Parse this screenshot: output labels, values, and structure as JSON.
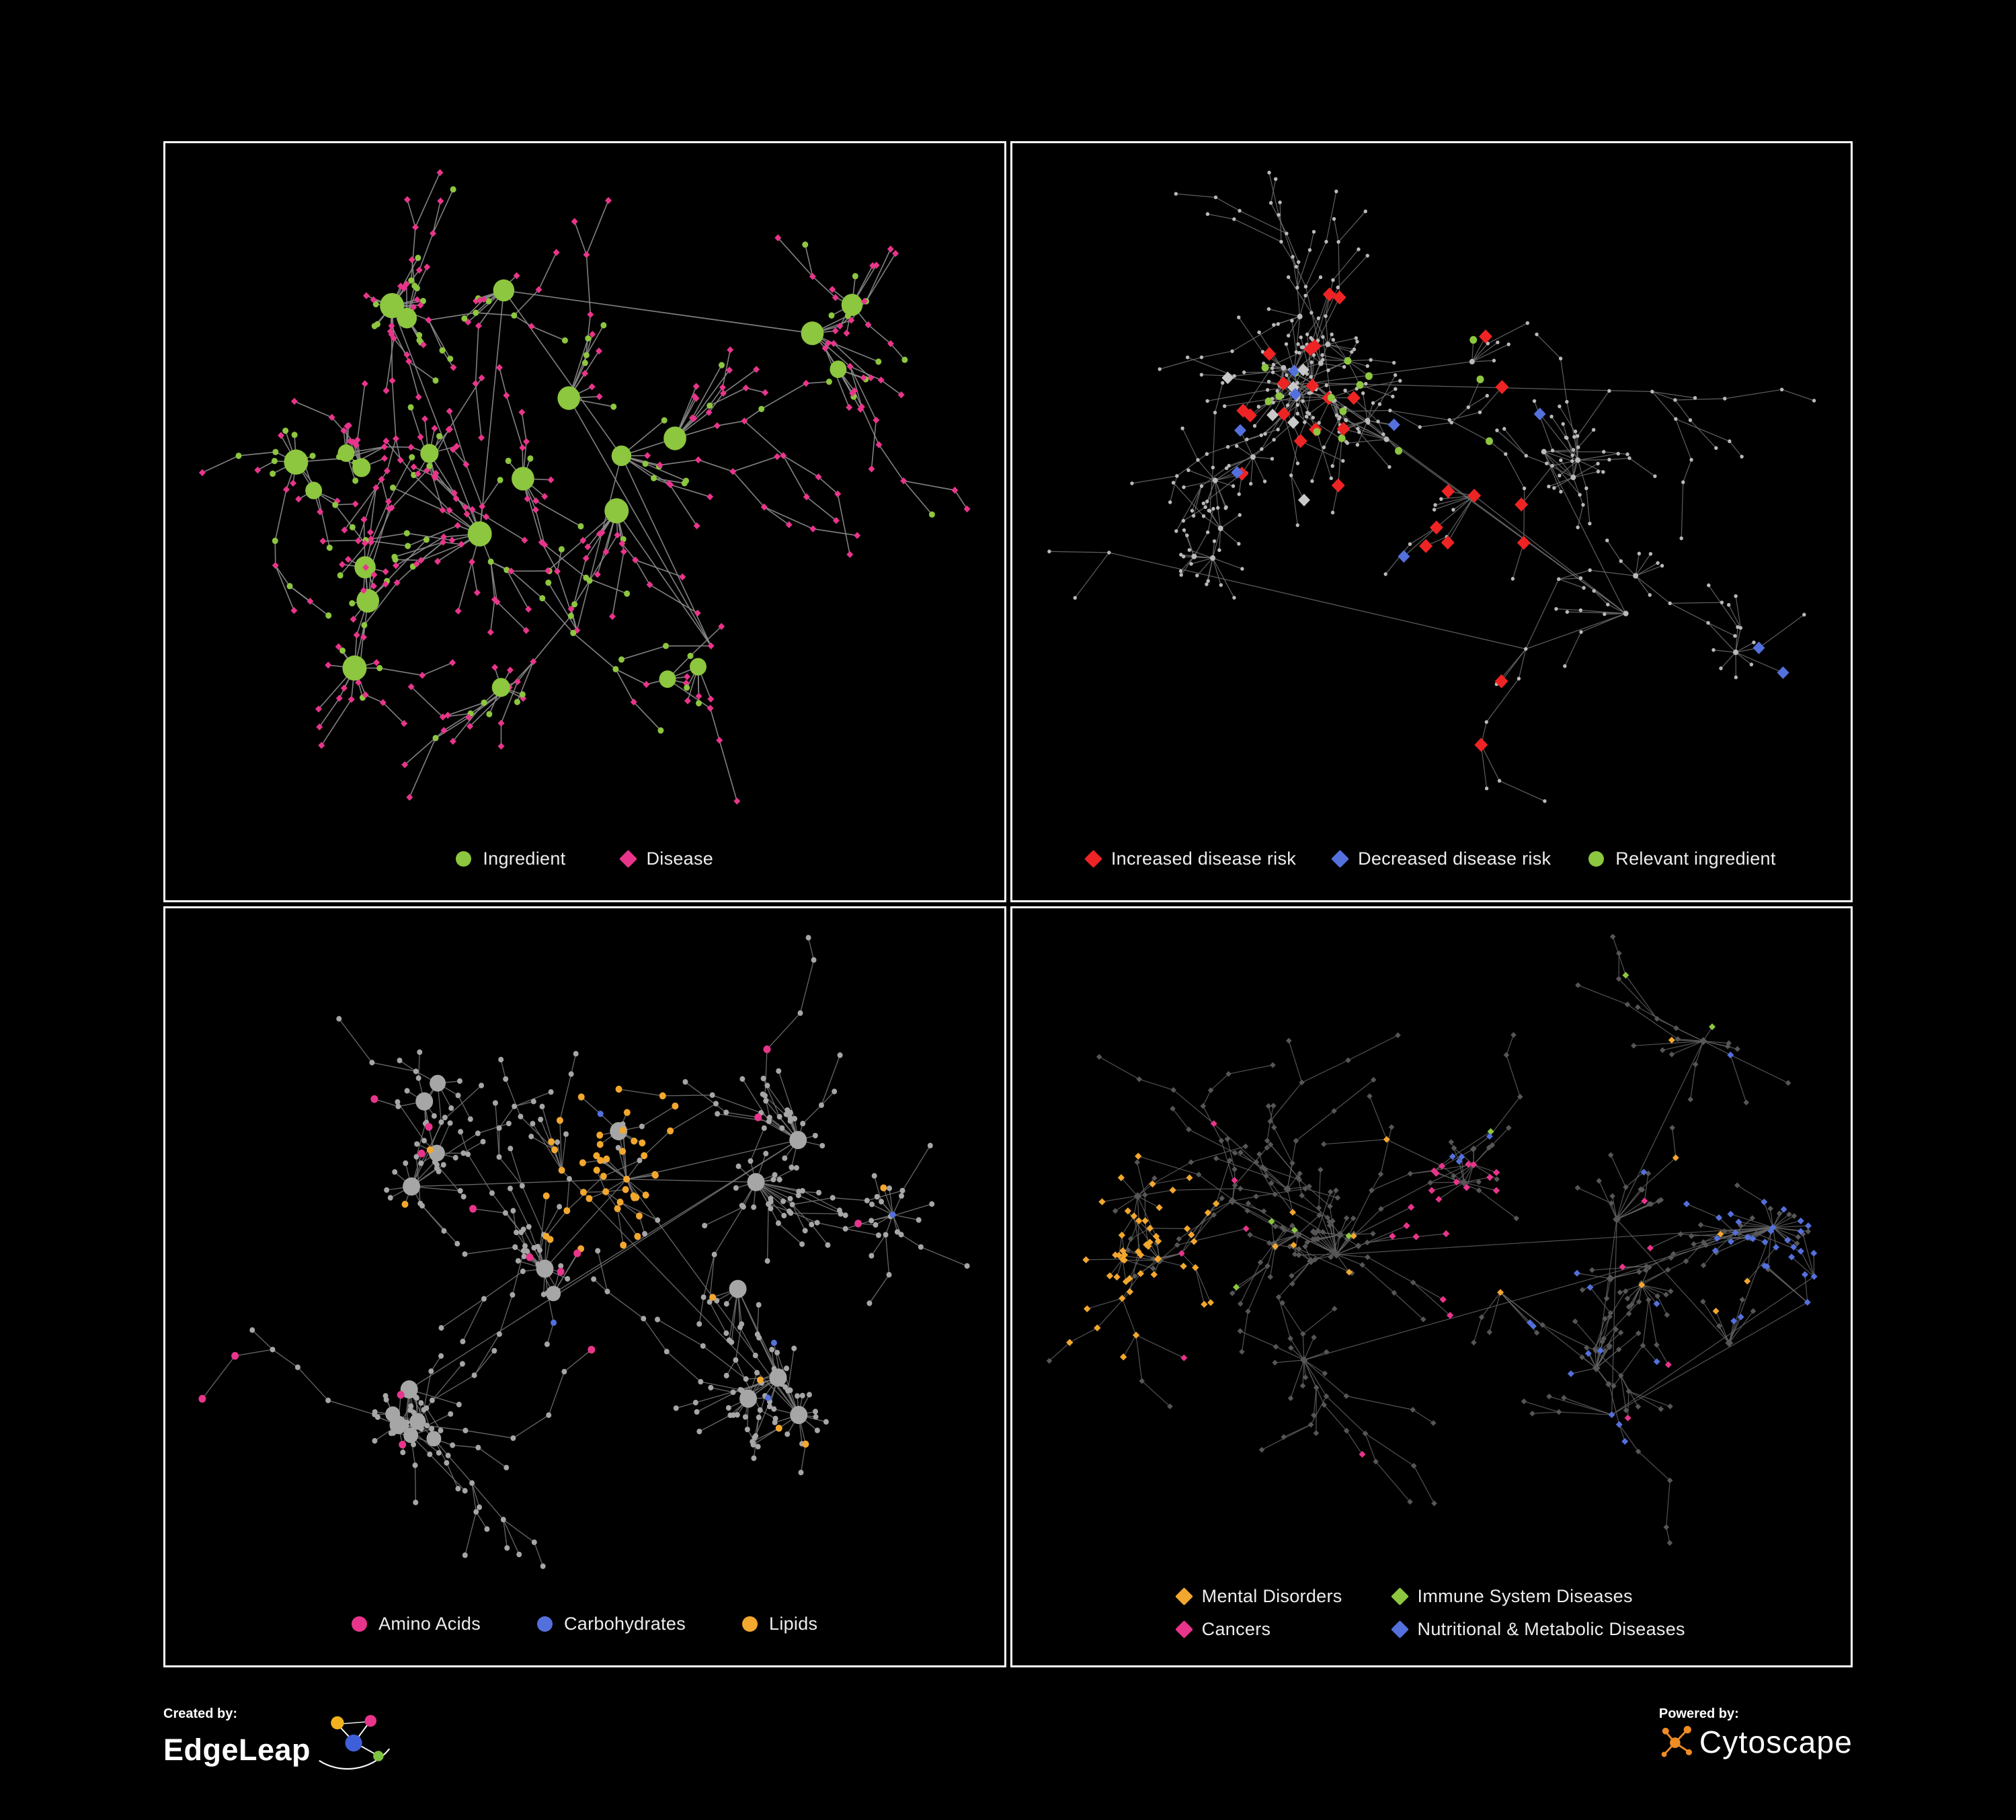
{
  "colors": {
    "green": "#8dc63f",
    "pink": "#e8358b",
    "red": "#ee2424",
    "blue": "#5470dd",
    "orange": "#f2a72e",
    "gray_light": "#b9b9b9",
    "gray_mid": "#a6a6a6",
    "gray_dark": "#565656",
    "silver": "#c9c9c9",
    "edge_bright": "#8d8d8d",
    "edge_dim": "#6e6e6e",
    "panel_border": "#ffffff",
    "background": "#000000",
    "edgeleap_yellow": "#f2b21d",
    "edgeleap_pink": "#e8358b",
    "edgeleap_blue": "#3f5fd9",
    "edgeleap_green": "#7dc242",
    "cytoscape_orange": "#f08c24"
  },
  "panels": [
    {
      "name": "ingredient-disease",
      "legend": [
        {
          "label": "Ingredient",
          "shape": "circle",
          "color": "#8dc63f"
        },
        {
          "label": "Disease",
          "shape": "diamond",
          "color": "#e8358b"
        }
      ]
    },
    {
      "name": "disease-risk",
      "legend": [
        {
          "label": "Increased disease risk",
          "shape": "diamond",
          "color": "#ee2424"
        },
        {
          "label": "Decreased disease risk",
          "shape": "diamond",
          "color": "#5470dd"
        },
        {
          "label": "Relevant ingredient",
          "shape": "circle",
          "color": "#8dc63f"
        }
      ]
    },
    {
      "name": "macronutrients",
      "legend": [
        {
          "label": "Amino Acids",
          "shape": "circle",
          "color": "#e8358b"
        },
        {
          "label": "Carbohydrates",
          "shape": "circle",
          "color": "#5470dd"
        },
        {
          "label": "Lipids",
          "shape": "circle",
          "color": "#f2a72e"
        }
      ]
    },
    {
      "name": "disease-categories",
      "legend": [
        {
          "label": "Mental Disorders",
          "shape": "diamond",
          "color": "#f2a72e"
        },
        {
          "label": "Immune System Diseases",
          "shape": "diamond",
          "color": "#8dc63f"
        },
        {
          "label": "Cancers",
          "shape": "diamond",
          "color": "#e8358b"
        },
        {
          "label": "Nutritional & Metabolic Diseases",
          "shape": "diamond",
          "color": "#5470dd"
        }
      ]
    }
  ],
  "networks": [
    {
      "seed": 7,
      "nodes": 430,
      "hubs": 10,
      "style": "ingredient-disease"
    },
    {
      "seed": 101,
      "nodes": 430,
      "hubs": 10,
      "style": "disease-risk"
    },
    {
      "seed": 2024,
      "nodes": 440,
      "hubs": 11,
      "style": "macronutrients"
    },
    {
      "seed": 99,
      "nodes": 480,
      "hubs": 11,
      "style": "disease-categories"
    }
  ],
  "footer": {
    "created_by": "Created by:",
    "brand": "EdgeLeap",
    "powered_by": "Powered by:",
    "engine": "Cytoscape"
  }
}
